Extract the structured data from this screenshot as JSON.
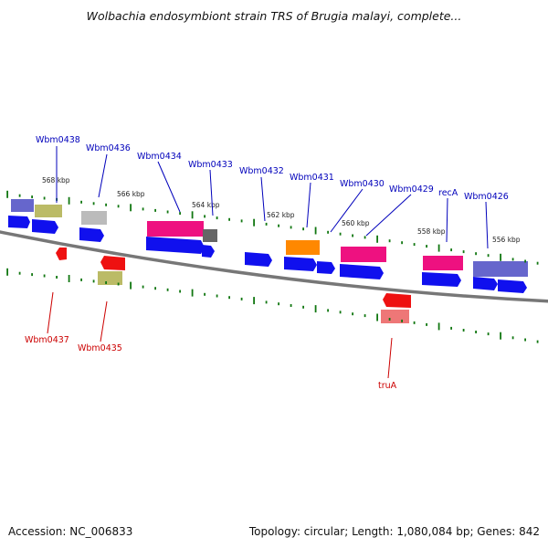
{
  "title": "Wolbachia endosymbiont strain TRS of Brugia malayi, complete...",
  "footer": {
    "accession": "Accession: NC_006833",
    "summary": "Topology: circular; Length: 1,080,084 bp; Genes: 842"
  },
  "colors": {
    "blue": "#1010ee",
    "magenta": "#ee1180",
    "red": "#ee1111",
    "orange": "#ff8800",
    "olive": "#bbbb66",
    "slate": "#6666cc",
    "grey": "#bbbbbb",
    "darkgrey": "#666666",
    "pink": "#ee7777",
    "tick": "#117711",
    "dna": "#777777",
    "label_forward": "#0000bb",
    "label_reverse": "#cc0000"
  },
  "scale_labels": [
    "568 kbp",
    "566 kbp",
    "564 kbp",
    "562 kbp",
    "560 kbp",
    "558 kbp",
    "556 kbp"
  ],
  "forward_labels": [
    "Wbm0438",
    "Wbm0436",
    "Wbm0434",
    "Wbm0433",
    "Wbm0432",
    "Wbm0431",
    "Wbm0430",
    "Wbm0429",
    "recA",
    "Wbm0426"
  ],
  "reverse_labels": [
    "Wbm0437",
    "Wbm0435",
    "truA"
  ]
}
